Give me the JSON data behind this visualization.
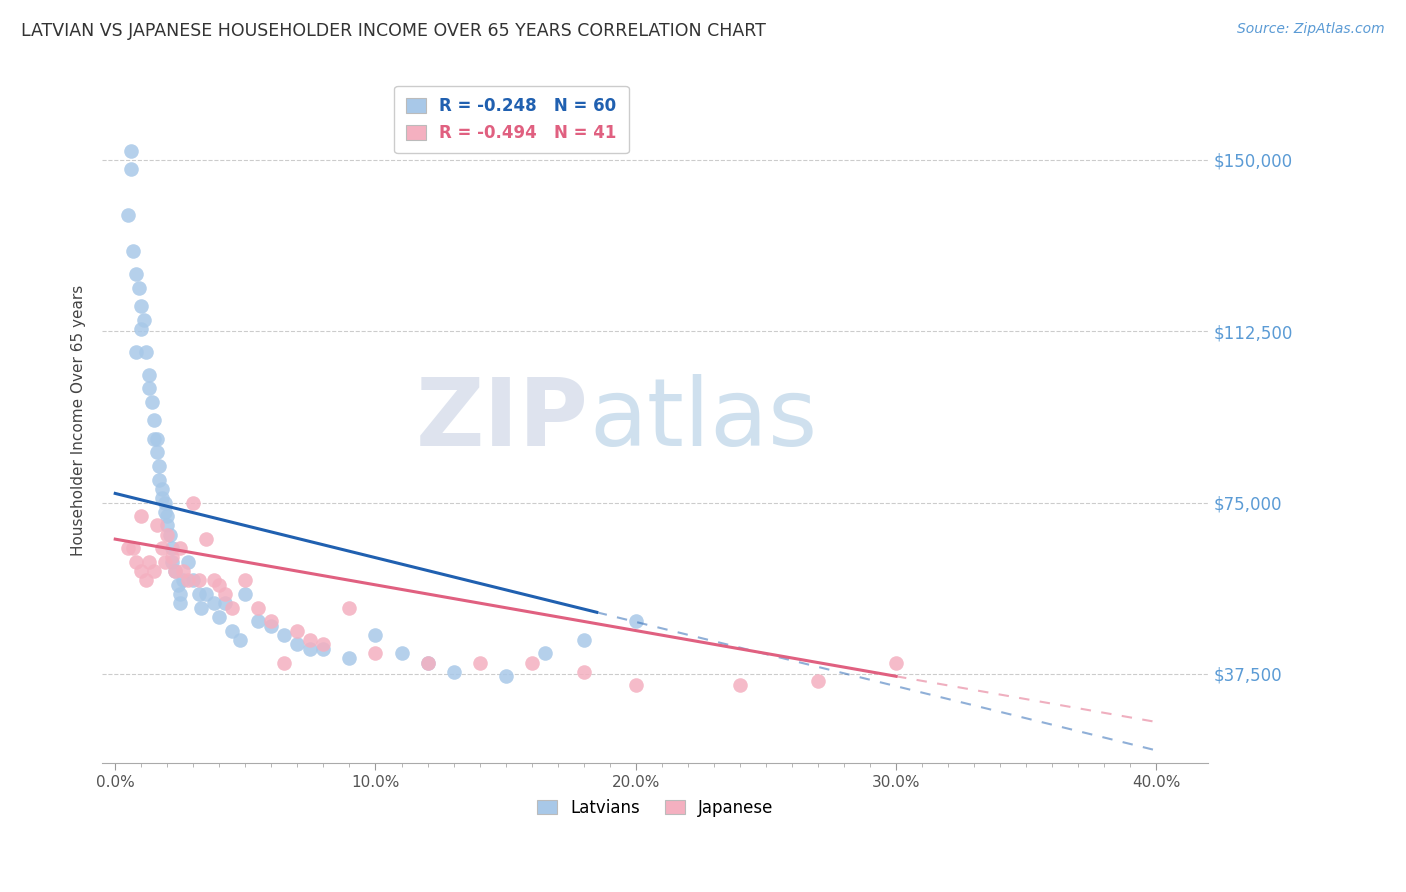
{
  "title": "LATVIAN VS JAPANESE HOUSEHOLDER INCOME OVER 65 YEARS CORRELATION CHART",
  "source": "Source: ZipAtlas.com",
  "ylabel": "Householder Income Over 65 years",
  "xlabel_ticks": [
    "0.0%",
    "10.0%",
    "20.0%",
    "30.0%",
    "40.0%"
  ],
  "xlabel_vals": [
    0.0,
    0.1,
    0.2,
    0.3,
    0.4
  ],
  "ytick_labels": [
    "$37,500",
    "$75,000",
    "$112,500",
    "$150,000"
  ],
  "ytick_vals": [
    37500,
    75000,
    112500,
    150000
  ],
  "ylim": [
    18000,
    168000
  ],
  "xlim": [
    -0.005,
    0.42
  ],
  "latvian_R": -0.248,
  "latvian_N": 60,
  "japanese_R": -0.494,
  "japanese_N": 41,
  "latvian_color": "#a8c8e8",
  "japanese_color": "#f4b0c0",
  "latvian_line_color": "#2060b0",
  "japanese_line_color": "#e06080",
  "latvian_scatter_x": [
    0.005,
    0.006,
    0.007,
    0.008,
    0.009,
    0.01,
    0.01,
    0.011,
    0.012,
    0.013,
    0.013,
    0.014,
    0.015,
    0.015,
    0.016,
    0.016,
    0.017,
    0.017,
    0.018,
    0.018,
    0.019,
    0.019,
    0.02,
    0.02,
    0.021,
    0.022,
    0.022,
    0.023,
    0.024,
    0.025,
    0.025,
    0.026,
    0.028,
    0.03,
    0.032,
    0.033,
    0.035,
    0.038,
    0.04,
    0.042,
    0.045,
    0.048,
    0.05,
    0.055,
    0.06,
    0.065,
    0.07,
    0.075,
    0.08,
    0.09,
    0.1,
    0.11,
    0.12,
    0.13,
    0.15,
    0.165,
    0.18,
    0.2,
    0.006,
    0.008
  ],
  "latvian_scatter_y": [
    138000,
    148000,
    130000,
    125000,
    122000,
    118000,
    113000,
    115000,
    108000,
    103000,
    100000,
    97000,
    93000,
    89000,
    86000,
    89000,
    83000,
    80000,
    78000,
    76000,
    75000,
    73000,
    72000,
    70000,
    68000,
    65000,
    62000,
    60000,
    57000,
    55000,
    53000,
    58000,
    62000,
    58000,
    55000,
    52000,
    55000,
    53000,
    50000,
    53000,
    47000,
    45000,
    55000,
    49000,
    48000,
    46000,
    44000,
    43000,
    43000,
    41000,
    46000,
    42000,
    40000,
    38000,
    37000,
    42000,
    45000,
    49000,
    152000,
    108000
  ],
  "japanese_scatter_x": [
    0.005,
    0.007,
    0.008,
    0.01,
    0.012,
    0.013,
    0.015,
    0.016,
    0.018,
    0.019,
    0.02,
    0.022,
    0.023,
    0.025,
    0.026,
    0.028,
    0.03,
    0.032,
    0.035,
    0.038,
    0.04,
    0.042,
    0.045,
    0.05,
    0.055,
    0.06,
    0.065,
    0.07,
    0.075,
    0.08,
    0.09,
    0.1,
    0.12,
    0.14,
    0.16,
    0.18,
    0.2,
    0.24,
    0.27,
    0.3,
    0.01
  ],
  "japanese_scatter_y": [
    65000,
    65000,
    62000,
    60000,
    58000,
    62000,
    60000,
    70000,
    65000,
    62000,
    68000,
    63000,
    60000,
    65000,
    60000,
    58000,
    75000,
    58000,
    67000,
    58000,
    57000,
    55000,
    52000,
    58000,
    52000,
    49000,
    40000,
    47000,
    45000,
    44000,
    52000,
    42000,
    40000,
    40000,
    40000,
    38000,
    35000,
    35000,
    36000,
    40000,
    72000
  ],
  "lat_line_x0": 0.0,
  "lat_line_y0": 77000,
  "lat_line_x1": 0.185,
  "lat_line_y1": 51000,
  "jap_line_x0": 0.0,
  "jap_line_y0": 67000,
  "jap_line_x1": 0.4,
  "jap_line_y1": 27000,
  "lat_solid_end": 0.185,
  "jap_solid_end": 0.3,
  "watermark_zip": "ZIP",
  "watermark_atlas": "atlas",
  "background_color": "#ffffff",
  "grid_color": "#cccccc",
  "title_color": "#333333",
  "axis_label_color": "#444444",
  "right_ytick_color": "#5b9bd5",
  "xtick_minor_count": 8
}
